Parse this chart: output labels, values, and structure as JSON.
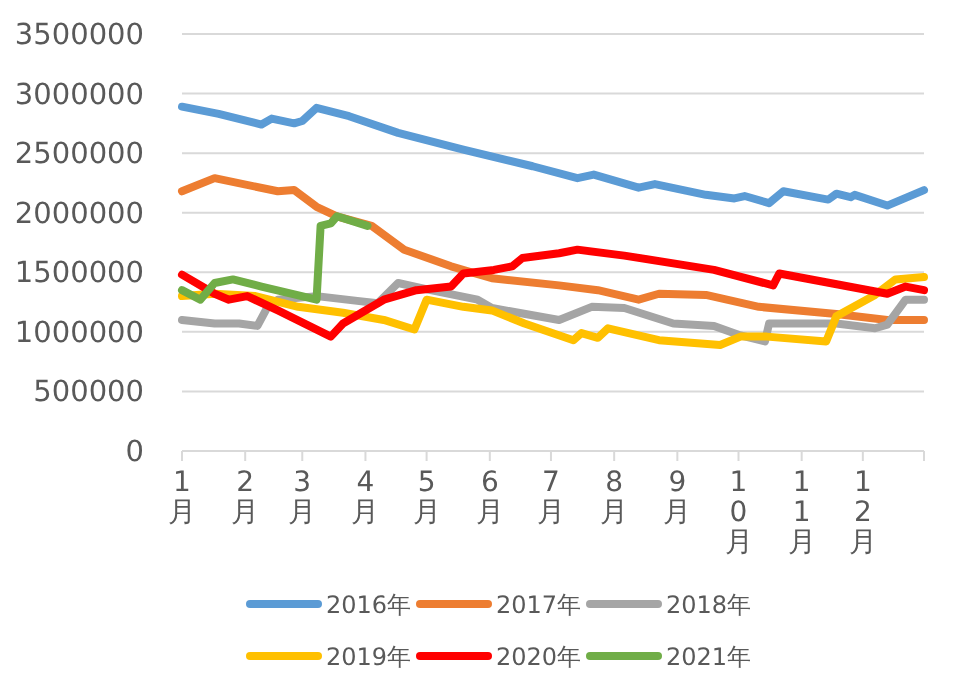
{
  "chart_data": {
    "type": "line",
    "xlim": [
      "--01-01",
      "--12-31"
    ],
    "ylim": [
      0,
      3500000
    ],
    "yticks": [
      0,
      500000,
      1000000,
      1500000,
      2000000,
      2500000,
      3000000,
      3500000
    ],
    "xticks": [
      {
        "value": "--01-01",
        "label": "1月"
      },
      {
        "value": "--02-01",
        "label": "2月"
      },
      {
        "value": "--03-01",
        "label": "3月"
      },
      {
        "value": "--04-01",
        "label": "4月"
      },
      {
        "value": "--05-01",
        "label": "5月"
      },
      {
        "value": "--06-01",
        "label": "6月"
      },
      {
        "value": "--07-01",
        "label": "7月"
      },
      {
        "value": "--08-01",
        "label": "8月"
      },
      {
        "value": "--09-01",
        "label": "9月"
      },
      {
        "value": "--10-01",
        "label": "10月"
      },
      {
        "value": "--11-01",
        "label": "11月"
      },
      {
        "value": "--12-01",
        "label": "12月"
      }
    ],
    "grid": "y",
    "legend": "bottom",
    "series": [
      {
        "name": "2016年",
        "color": "#5b9bd5",
        "x": [
          "--01-01",
          "--01-19",
          "--02-09",
          "--02-14",
          "--02-25",
          "--03-01",
          "--03-08",
          "--03-24",
          "--04-17",
          "--05-19",
          "--06-22",
          "--07-14",
          "--07-22",
          "--08-13",
          "--08-21",
          "--09-15",
          "--09-29",
          "--10-04",
          "--10-16",
          "--10-23",
          "--11-14",
          "--11-18",
          "--11-25",
          "--11-27",
          "--12-13",
          "--12-31"
        ],
        "values": [
          2890000,
          2830000,
          2740000,
          2790000,
          2750000,
          2770000,
          2880000,
          2810000,
          2670000,
          2530000,
          2390000,
          2290000,
          2320000,
          2210000,
          2240000,
          2150000,
          2120000,
          2140000,
          2080000,
          2180000,
          2110000,
          2160000,
          2130000,
          2150000,
          2060000,
          2190000
        ]
      },
      {
        "name": "2017年",
        "color": "#ed7d31",
        "x": [
          "--01-01",
          "--01-17",
          "--02-17",
          "--02-25",
          "--03-08",
          "--03-18",
          "--04-04",
          "--04-20",
          "--05-13",
          "--06-02",
          "--07-05",
          "--07-24",
          "--08-13",
          "--08-23",
          "--09-15",
          "--10-11",
          "--11-18",
          "--12-13",
          "--12-31"
        ],
        "values": [
          2180000,
          2290000,
          2180000,
          2190000,
          2050000,
          1970000,
          1890000,
          1690000,
          1550000,
          1450000,
          1390000,
          1350000,
          1270000,
          1320000,
          1310000,
          1210000,
          1150000,
          1100000,
          1100000
        ]
      },
      {
        "name": "2018年",
        "color": "#a5a5a5",
        "x": [
          "--01-01",
          "--01-17",
          "--01-29",
          "--02-07",
          "--02-12",
          "--02-17",
          "--03-08",
          "--03-28",
          "--04-07",
          "--04-17",
          "--05-03",
          "--05-26",
          "--06-02",
          "--07-05",
          "--07-21",
          "--08-06",
          "--08-30",
          "--09-19",
          "--10-02",
          "--10-14",
          "--10-16",
          "--11-18",
          "--12-07",
          "--12-13",
          "--12-22",
          "--12-31"
        ],
        "values": [
          1100000,
          1070000,
          1070000,
          1050000,
          1210000,
          1270000,
          1300000,
          1260000,
          1240000,
          1410000,
          1350000,
          1270000,
          1200000,
          1100000,
          1210000,
          1200000,
          1070000,
          1050000,
          970000,
          920000,
          1070000,
          1070000,
          1030000,
          1060000,
          1270000,
          1270000
        ]
      },
      {
        "name": "2019年",
        "color": "#ffc000",
        "x": [
          "--01-01",
          "--01-17",
          "--02-06",
          "--02-27",
          "--03-21",
          "--04-10",
          "--04-25",
          "--05-01",
          "--05-19",
          "--06-02",
          "--06-18",
          "--07-12",
          "--07-16",
          "--07-24",
          "--07-29",
          "--08-23",
          "--09-22",
          "--10-02",
          "--10-15",
          "--11-13",
          "--11-18",
          "--12-07",
          "--12-17",
          "--12-31"
        ],
        "values": [
          1300000,
          1320000,
          1300000,
          1210000,
          1160000,
          1100000,
          1020000,
          1270000,
          1210000,
          1180000,
          1070000,
          930000,
          990000,
          950000,
          1030000,
          930000,
          890000,
          960000,
          960000,
          920000,
          1130000,
          1310000,
          1440000,
          1460000
        ]
      },
      {
        "name": "2020年",
        "color": "#ff0000",
        "x": [
          "--01-01",
          "--01-17",
          "--01-24",
          "--02-02",
          "--02-17",
          "--03-15",
          "--03-21",
          "--04-10",
          "--04-26",
          "--05-13",
          "--05-19",
          "--06-03",
          "--06-12",
          "--06-17",
          "--07-05",
          "--07-14",
          "--08-06",
          "--09-19",
          "--10-18",
          "--10-21",
          "--12-13",
          "--12-22",
          "--12-31"
        ],
        "values": [
          1480000,
          1320000,
          1270000,
          1300000,
          1180000,
          960000,
          1070000,
          1270000,
          1350000,
          1380000,
          1490000,
          1520000,
          1550000,
          1620000,
          1660000,
          1690000,
          1640000,
          1520000,
          1390000,
          1490000,
          1320000,
          1380000,
          1350000
        ]
      },
      {
        "name": "2021年",
        "color": "#70ad47",
        "x": [
          "--01-01",
          "--01-10",
          "--01-17",
          "--01-26",
          "--02-09",
          "--03-08",
          "--03-10",
          "--03-15",
          "--03-18",
          "--04-02"
        ],
        "values": [
          1350000,
          1270000,
          1410000,
          1440000,
          1380000,
          1270000,
          1890000,
          1910000,
          1970000,
          1890000
        ]
      }
    ]
  }
}
